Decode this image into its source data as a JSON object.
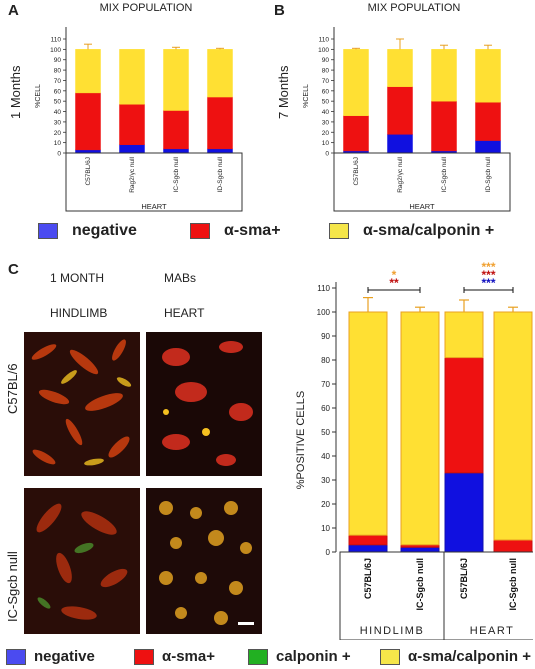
{
  "panels": {
    "a_letter": "A",
    "b_letter": "B",
    "c_letter": "C",
    "a_side_label": "1 Months",
    "b_side_label": "7 Months",
    "c_col1_top": "1 MONTH",
    "c_col1_sub": "HINDLIMB",
    "c_col2_top": "MABs",
    "c_col2_sub": "HEART",
    "c_row1_label": "C57BL/6",
    "c_row2_label": "IC-Sgcb null"
  },
  "legend_top": [
    {
      "label": "negative",
      "color": "#4b4bf0"
    },
    {
      "label": "α-sma+",
      "color": "#ee1111"
    },
    {
      "label": "α-sma/calponin +",
      "color": "#f5e64a"
    }
  ],
  "legend_bottom": [
    {
      "label": "negative",
      "color": "#4b4bf0"
    },
    {
      "label": "α-sma+",
      "color": "#ee1111"
    },
    {
      "label": "calponin +",
      "color": "#22b022"
    },
    {
      "label": "α-sma/calponin +",
      "color": "#f5e64a"
    }
  ],
  "colors": {
    "negative": "#1010e0",
    "asma": "#ee1111",
    "both": "#ffe033",
    "err_yellow": "#e8a020",
    "star_orange": "#f0a030",
    "star_red": "#c01010",
    "star_blue": "#1010c0"
  },
  "chart_data": [
    {
      "id": "A",
      "type": "bar",
      "stacked": true,
      "title": "MIX POPULATION",
      "ylabel": "%CELL",
      "xlabel": "HEART",
      "ylim": [
        0,
        110
      ],
      "yticks": [
        0,
        10,
        20,
        30,
        40,
        50,
        60,
        70,
        80,
        90,
        100,
        110
      ],
      "categories": [
        "C57BL/6J",
        "Rag2/γc null",
        "IC-Sgcb null",
        "ID-Sgcb null"
      ],
      "series": [
        {
          "key": "negative",
          "values": [
            3,
            8,
            4,
            4
          ],
          "errors": [
            1,
            7,
            2,
            2
          ]
        },
        {
          "key": "asma",
          "values": [
            55,
            39,
            37,
            50
          ],
          "errors": [
            4,
            5,
            4,
            2
          ]
        },
        {
          "key": "both",
          "values": [
            42,
            53,
            59,
            46
          ],
          "errors": [
            5,
            0,
            2,
            1
          ]
        }
      ]
    },
    {
      "id": "B",
      "type": "bar",
      "stacked": true,
      "title": "MIX POPULATION",
      "ylabel": "%CELL",
      "xlabel": "HEART",
      "ylim": [
        0,
        110
      ],
      "yticks": [
        0,
        10,
        20,
        30,
        40,
        50,
        60,
        70,
        80,
        90,
        100,
        110
      ],
      "categories": [
        "C57BL/6J",
        "Rag2/γc null",
        "IC-Sgcb null",
        "ID-Sgcb null"
      ],
      "series": [
        {
          "key": "negative",
          "values": [
            2,
            18,
            2,
            12
          ],
          "errors": [
            1,
            4,
            1,
            4
          ]
        },
        {
          "key": "asma",
          "values": [
            34,
            46,
            48,
            37
          ],
          "errors": [
            0,
            6,
            4,
            3
          ]
        },
        {
          "key": "both",
          "values": [
            64,
            36,
            50,
            51
          ],
          "errors": [
            1,
            10,
            4,
            4
          ]
        }
      ]
    },
    {
      "id": "C",
      "type": "bar",
      "stacked": true,
      "ylabel": "%POSITIVE CELLS",
      "ylim": [
        0,
        110
      ],
      "yticks": [
        0,
        10,
        20,
        30,
        40,
        50,
        60,
        70,
        80,
        90,
        100,
        110
      ],
      "categories": [
        "C57BL/6J",
        "IC-Sgcb null",
        "C57BL/6J",
        "IC-Sgcb null"
      ],
      "groups": [
        "HINDLIMB",
        "HEART"
      ],
      "series": [
        {
          "key": "negative",
          "values": [
            3,
            2,
            33,
            0
          ],
          "errors": [
            0,
            0,
            14,
            0
          ]
        },
        {
          "key": "asma",
          "values": [
            4,
            1,
            48,
            5
          ],
          "errors": [
            1,
            1,
            13,
            2
          ]
        },
        {
          "key": "both",
          "values": [
            93,
            97,
            19,
            95
          ],
          "errors": [
            6,
            2,
            5,
            2
          ]
        }
      ],
      "significance": [
        {
          "stars": [
            {
              "text": "*",
              "color": "star_orange"
            },
            {
              "text": "**",
              "color": "star_red"
            }
          ]
        },
        {
          "stars": [
            {
              "text": "***",
              "color": "star_orange"
            },
            {
              "text": "***",
              "color": "star_red"
            },
            {
              "text": "***",
              "color": "star_blue"
            }
          ]
        }
      ]
    }
  ]
}
